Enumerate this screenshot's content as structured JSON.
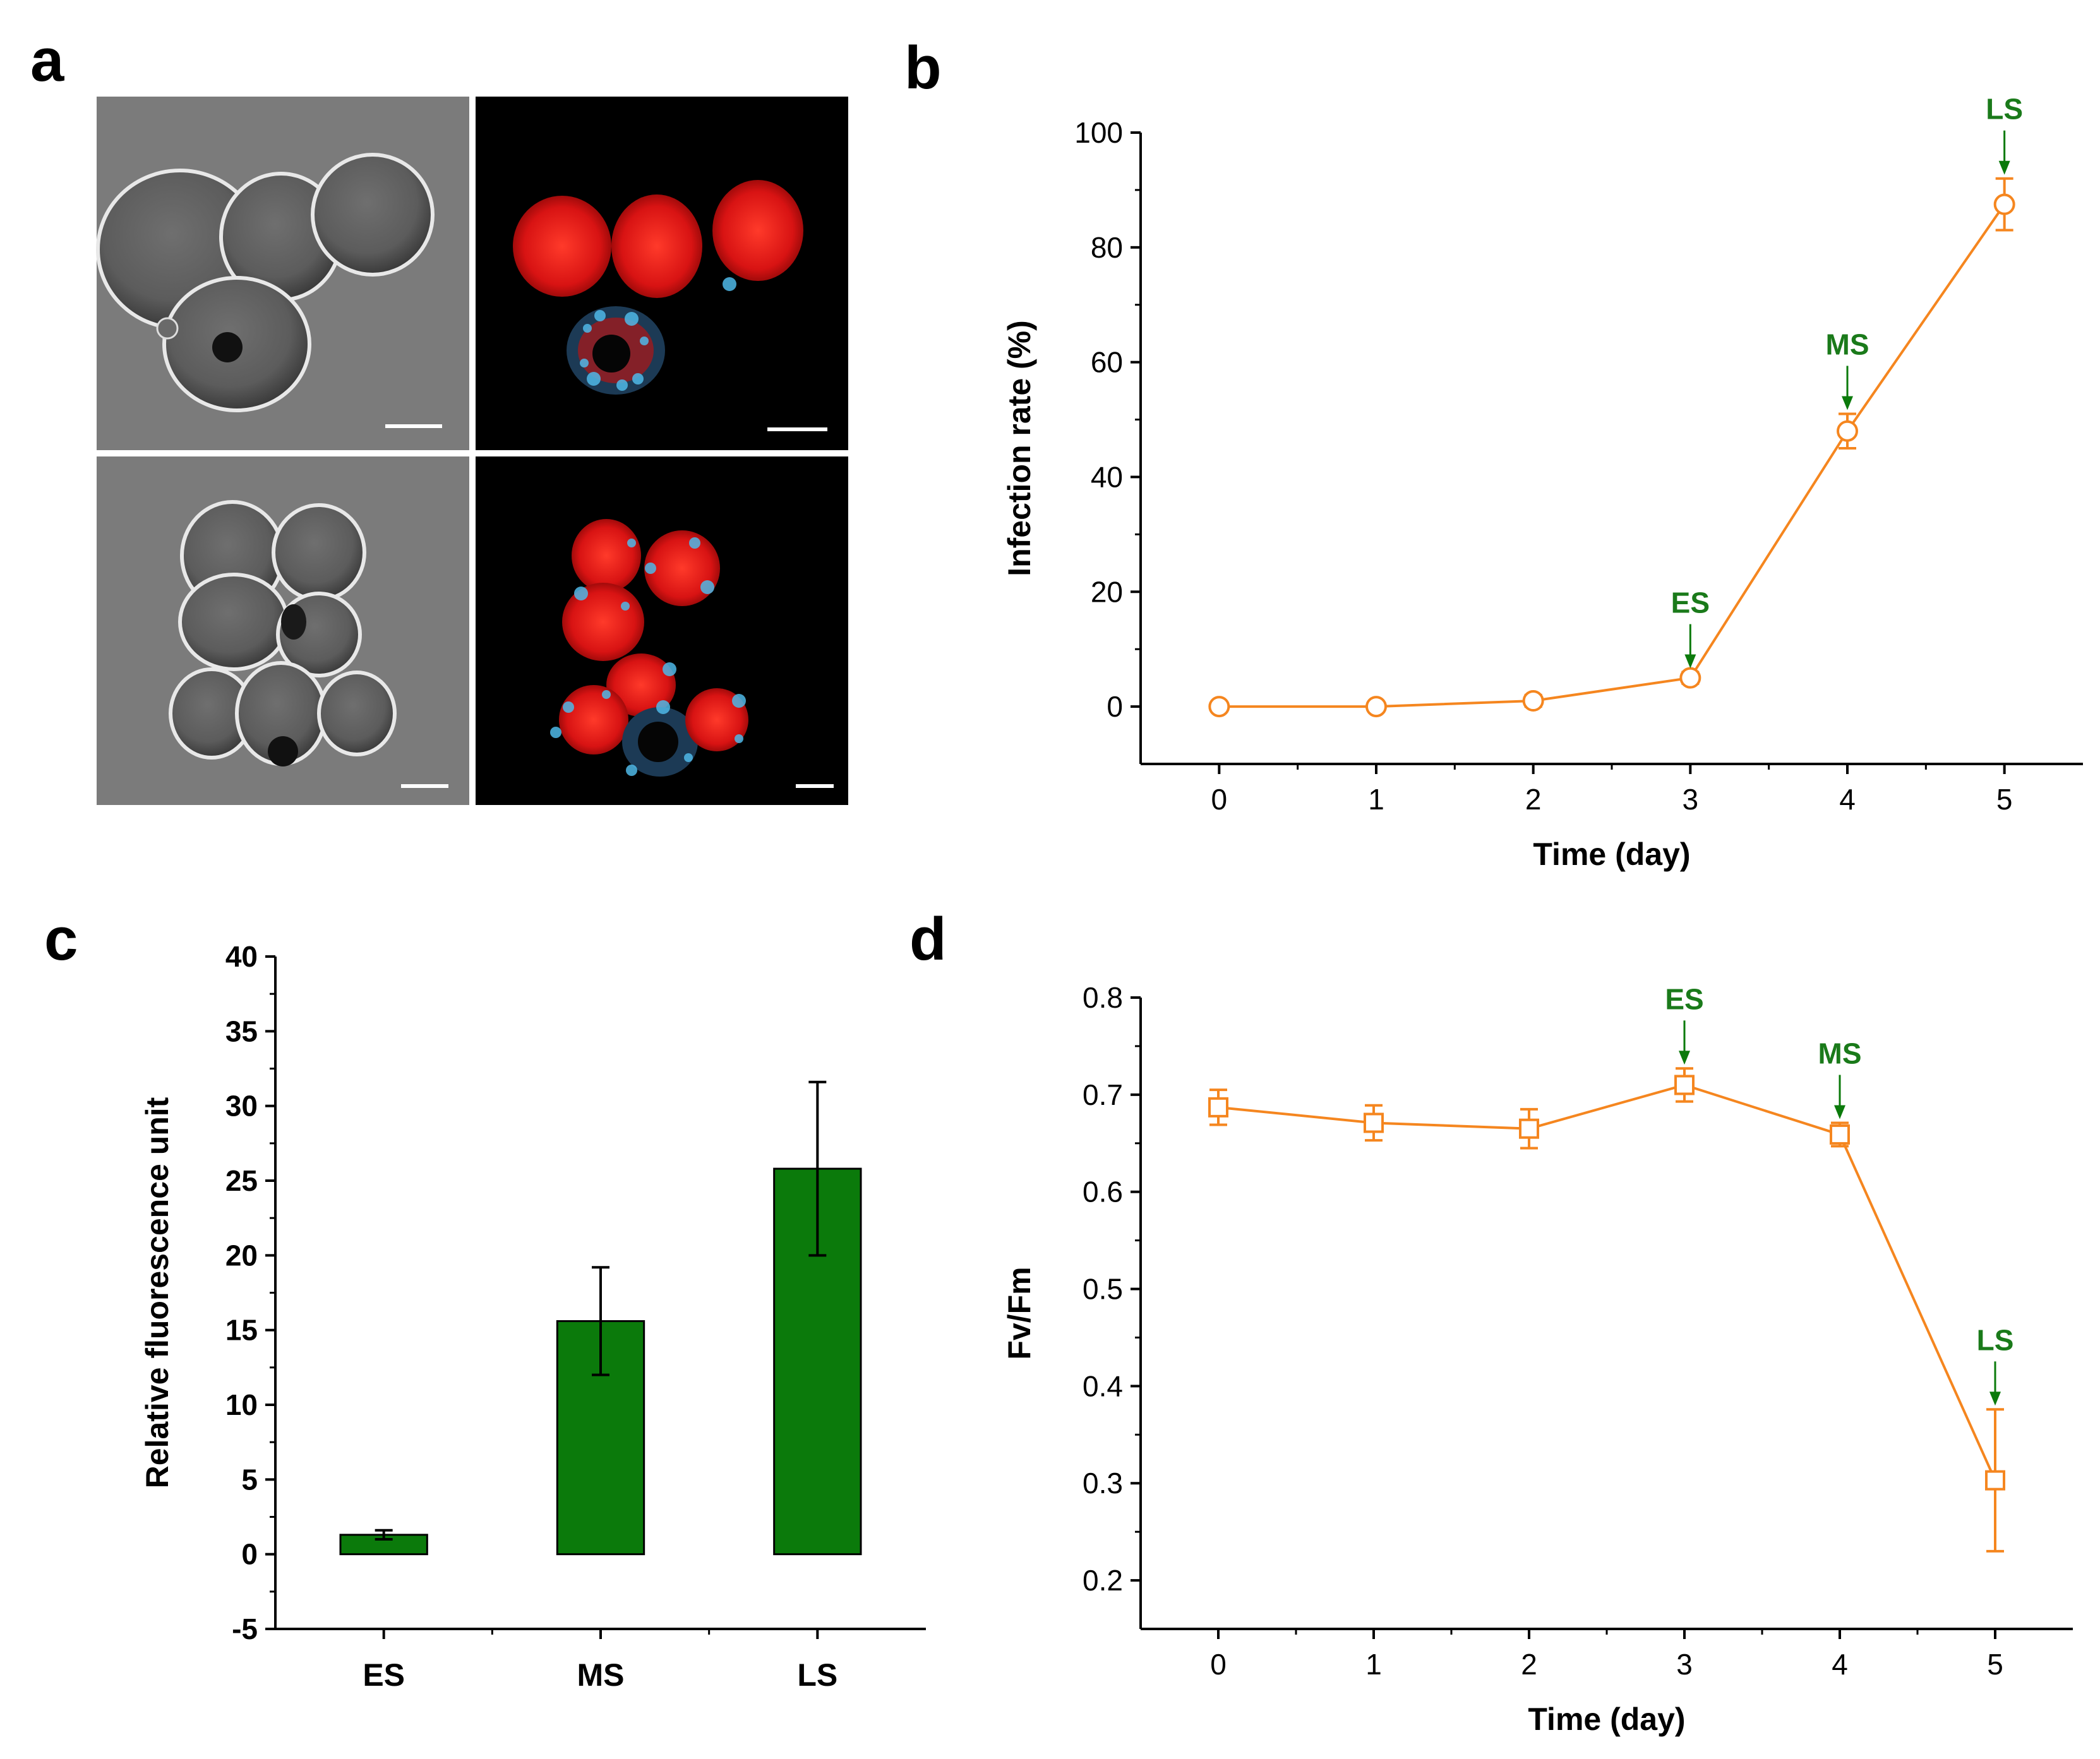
{
  "colors": {
    "orange": "#f5861f",
    "green": "#0b7a0b",
    "stage_label": "#1a7a1a",
    "micro_gray": "#7b7b7b",
    "micro_dark": "#000000",
    "red_fluor": "#e01515",
    "cyan_fluor": "#4fb8e8"
  },
  "panels": {
    "a": {
      "letter": "a",
      "images": [
        {
          "name": "brightfield-top",
          "kind": "brightfield"
        },
        {
          "name": "fluorescence-top",
          "kind": "fluorescence"
        },
        {
          "name": "brightfield-bottom",
          "kind": "brightfield"
        },
        {
          "name": "fluorescence-bottom",
          "kind": "fluorescence"
        }
      ]
    },
    "b": {
      "letter": "b"
    },
    "c": {
      "letter": "c"
    },
    "d": {
      "letter": "d"
    }
  },
  "chart_data": [
    {
      "id": "b",
      "type": "line",
      "xlabel": "Time (day)",
      "ylabel": "Infection rate (%)",
      "xlim": [
        -0.5,
        5.5
      ],
      "ylim": [
        -10,
        100
      ],
      "xticks": [
        0,
        1,
        2,
        3,
        4,
        5
      ],
      "yticks": [
        0,
        20,
        40,
        60,
        80,
        100
      ],
      "marker": "circle",
      "series": [
        {
          "name": "Infection rate",
          "x": [
            0,
            1,
            2,
            3,
            4,
            5
          ],
          "values": [
            0,
            0,
            1,
            5,
            48,
            87.5
          ],
          "errors": [
            0,
            0,
            1,
            1,
            3,
            4.5
          ]
        }
      ],
      "annotations": [
        {
          "text": "ES",
          "x": 3
        },
        {
          "text": "MS",
          "x": 4
        },
        {
          "text": "LS",
          "x": 5
        }
      ]
    },
    {
      "id": "c",
      "type": "bar",
      "xlabel": "",
      "ylabel": "Relative fluorescence unit",
      "ylim": [
        -5,
        40
      ],
      "yticks": [
        -5,
        0,
        5,
        10,
        15,
        20,
        25,
        30,
        35,
        40
      ],
      "categories": [
        "ES",
        "MS",
        "LS"
      ],
      "values": [
        1.3,
        15.6,
        25.8
      ],
      "errors": [
        0.3,
        3.6,
        5.8
      ]
    },
    {
      "id": "d",
      "type": "line",
      "xlabel": "Time (day)",
      "ylabel": "Fv/Fm",
      "xlim": [
        -0.5,
        5.5
      ],
      "ylim": [
        0.15,
        0.8
      ],
      "xticks": [
        0,
        1,
        2,
        3,
        4,
        5
      ],
      "yticks": [
        0.2,
        0.3,
        0.4,
        0.5,
        0.6,
        0.7,
        0.8
      ],
      "marker": "square",
      "series": [
        {
          "name": "Fv/Fm",
          "x": [
            0,
            1,
            2,
            3,
            4,
            5
          ],
          "values": [
            0.687,
            0.671,
            0.665,
            0.71,
            0.659,
            0.303
          ],
          "errors": [
            0.018,
            0.018,
            0.02,
            0.017,
            0.012,
            0.073
          ]
        }
      ],
      "annotations": [
        {
          "text": "ES",
          "x": 3
        },
        {
          "text": "MS",
          "x": 4
        },
        {
          "text": "LS",
          "x": 5
        }
      ]
    }
  ]
}
